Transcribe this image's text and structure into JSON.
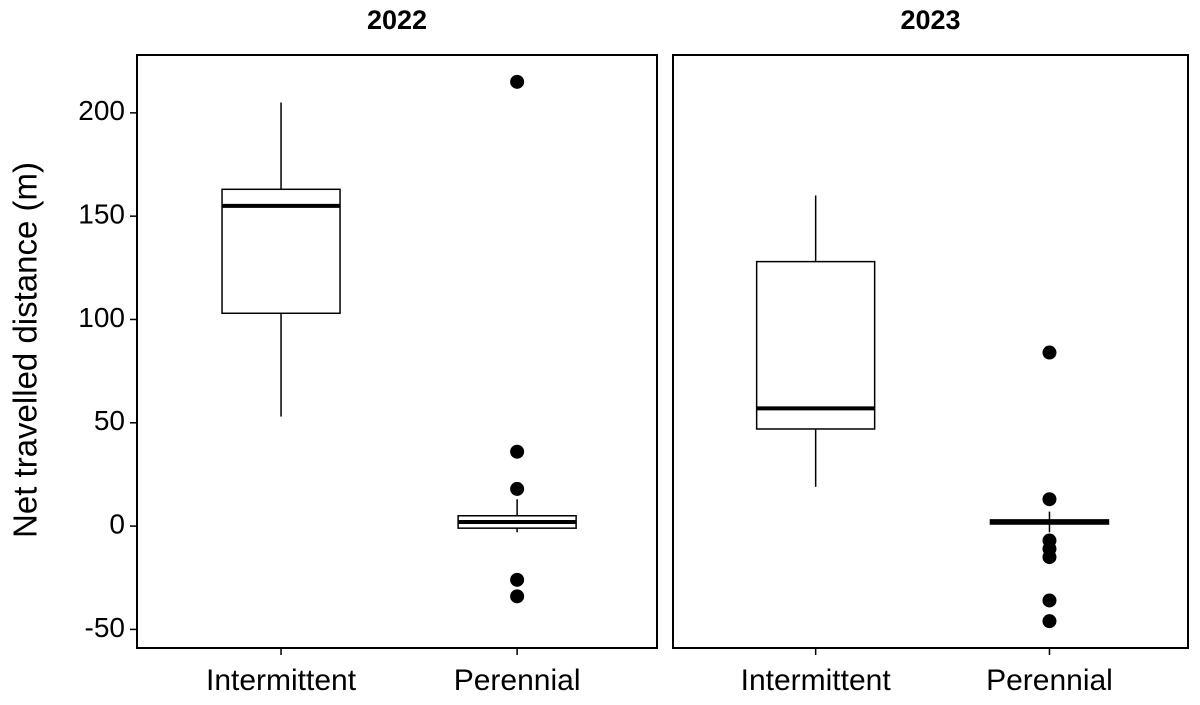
{
  "chart_data": [
    {
      "type": "box",
      "title": "2022",
      "ylabel": "Net travelled distance (m)",
      "categories": [
        "Intermittent",
        "Perennial"
      ],
      "boxes": [
        {
          "whislo": 53,
          "q1": 103,
          "med": 155,
          "q3": 163,
          "whishi": 205,
          "fliers": []
        },
        {
          "whislo": -3,
          "q1": -1,
          "med": 2,
          "q3": 5,
          "whishi": 13,
          "fliers": [
            215,
            36,
            18,
            -26,
            -34
          ]
        }
      ],
      "color": "#000000",
      "ylim": [
        -59,
        228
      ],
      "yticks": [
        -50,
        0,
        50,
        100,
        150,
        200
      ]
    },
    {
      "type": "box",
      "title": "2023",
      "categories": [
        "Intermittent",
        "Perennial"
      ],
      "boxes": [
        {
          "whislo": 19,
          "q1": 47,
          "med": 57,
          "q3": 128,
          "whishi": 160,
          "fliers": []
        },
        {
          "whislo": -3,
          "q1": 1,
          "med": 2,
          "q3": 3,
          "whishi": 7,
          "fliers": [
            84,
            13,
            -7,
            -11,
            -15,
            -36,
            -46
          ]
        }
      ],
      "color": "#000000",
      "ylim": [
        -59,
        228
      ]
    }
  ]
}
